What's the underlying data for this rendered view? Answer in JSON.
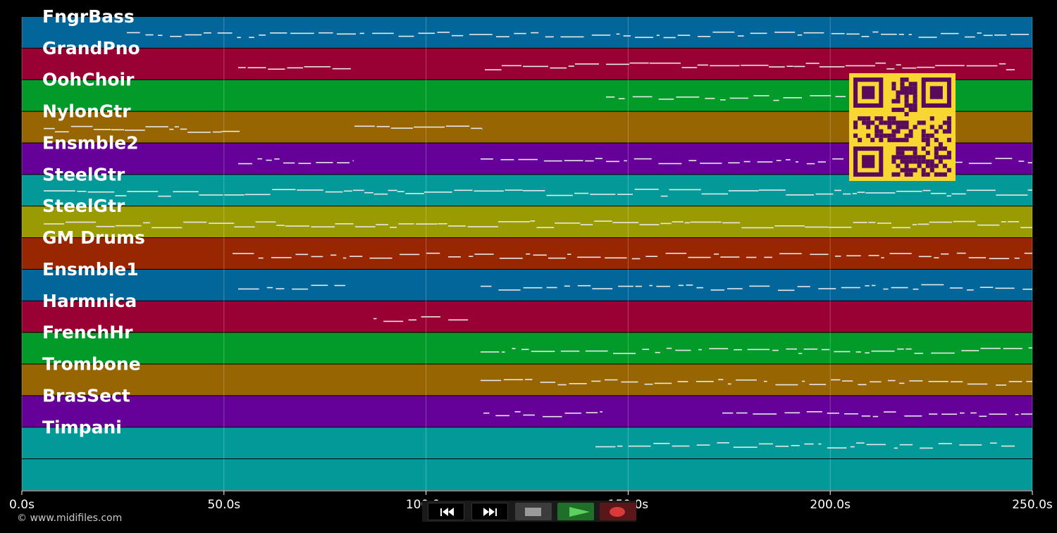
{
  "tracks": [
    {
      "name": "FngrBass",
      "color": "#02669a"
    },
    {
      "name": "GrandPno",
      "color": "#990033"
    },
    {
      "name": "OohChoir",
      "color": "#029a29"
    },
    {
      "name": "NylonGtr",
      "color": "#976501"
    },
    {
      "name": "Ensmble2",
      "color": "#650199"
    },
    {
      "name": "SteelGtr",
      "color": "#039999"
    },
    {
      "name": "SteelGtr",
      "color": "#9a9a02"
    },
    {
      "name": "GM Drums",
      "color": "#982601"
    },
    {
      "name": "Ensmble1",
      "color": "#02669a"
    },
    {
      "name": "Harmnica",
      "color": "#990033"
    },
    {
      "name": "FrenchHr",
      "color": "#029a29"
    },
    {
      "name": "Trombone",
      "color": "#976501"
    },
    {
      "name": "BrasSect",
      "color": "#650199"
    },
    {
      "name": "Timpani",
      "color": "#039999"
    },
    {
      "name": "",
      "color": "#039999"
    }
  ],
  "time_axis": {
    "ticks": [
      "0.0s",
      "50.0s",
      "100.0s",
      "150.0s",
      "200.0s",
      "250.0s"
    ]
  },
  "copyright": "© www.midifiles.com",
  "transport": {
    "rewind_icon": "rewind-icon",
    "fast_forward_icon": "fast-forward-icon",
    "stop_icon": "stop-icon",
    "play_icon": "play-icon",
    "record_icon": "record-icon"
  },
  "qr_code": {
    "fg": "#5a0a5a",
    "bg": "#f8d732"
  }
}
